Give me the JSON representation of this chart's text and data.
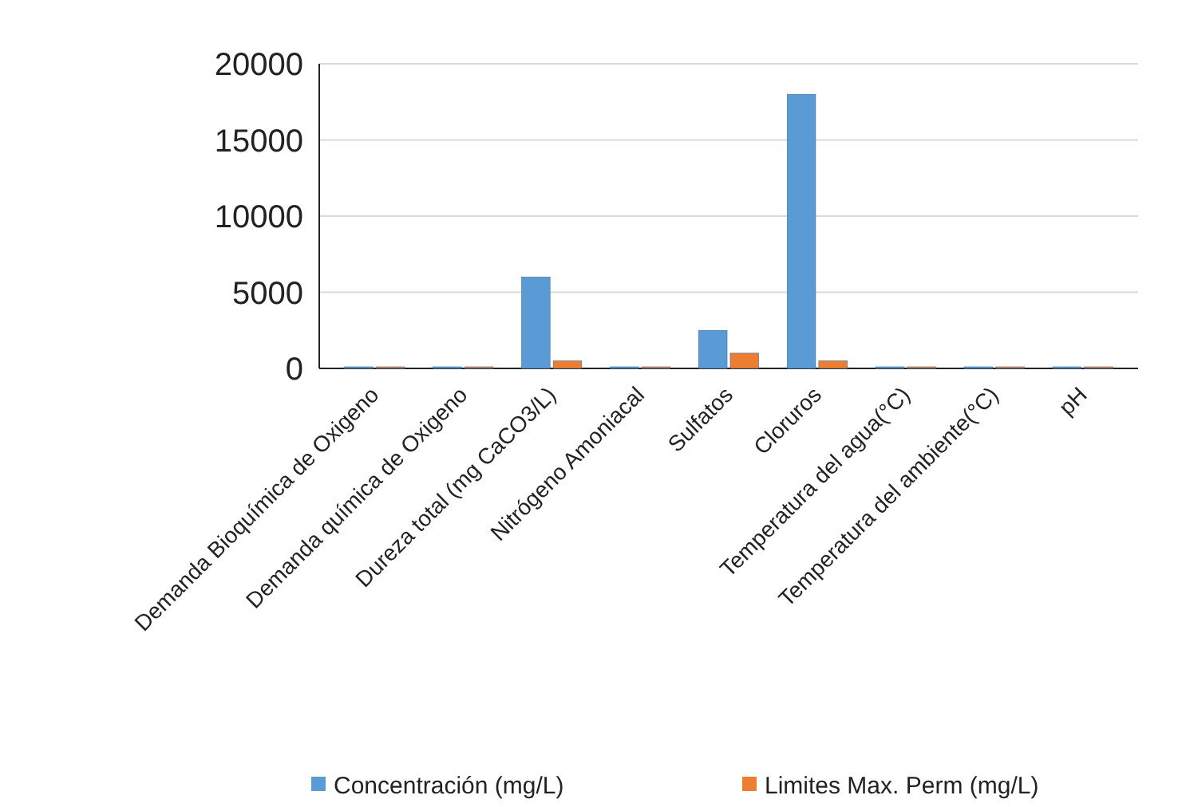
{
  "chart_data": {
    "type": "bar",
    "categories": [
      "Demanda Bioquímica de Oxigeno",
      "Demanda química de Oxigeno",
      "Dureza total (mg CaCO3/L)",
      "Nitrógeno Amoniacal",
      "Sulfatos",
      "Cloruros",
      "Temperatura del agua(°C)",
      "Temperatura del ambiente(°C)",
      "pH"
    ],
    "series": [
      {
        "name": "Concentración (mg/L)",
        "color": "#5b9bd5",
        "values": [
          0,
          0,
          6000,
          0,
          2500,
          18000,
          0,
          0,
          0
        ]
      },
      {
        "name": "Limites Max. Perm (mg/L)",
        "color": "#ed7d31",
        "values": [
          0,
          0,
          500,
          0,
          1000,
          500,
          0,
          0,
          0
        ]
      }
    ],
    "ylim": [
      0,
      20000
    ],
    "yticks": [
      0,
      5000,
      10000,
      15000,
      20000
    ],
    "grid": "y",
    "legend": "bottom"
  }
}
